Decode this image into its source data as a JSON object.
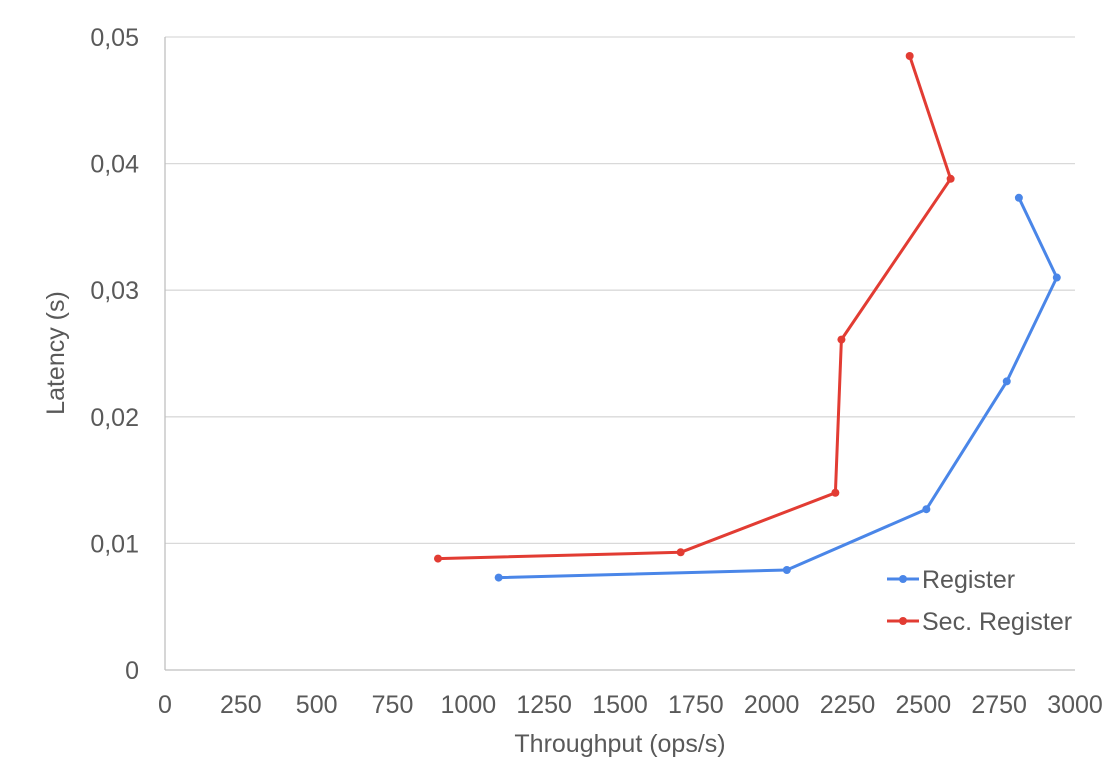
{
  "chart_data": {
    "type": "line",
    "xlabel": "Throughput (ops/s)",
    "ylabel": "Latency (s)",
    "xlim": [
      0,
      3000
    ],
    "ylim": [
      0,
      0.05
    ],
    "x_ticks": [
      0,
      250,
      500,
      750,
      1000,
      1250,
      1500,
      1750,
      2000,
      2250,
      2500,
      2750,
      3000
    ],
    "x_tick_labels": [
      "0",
      "250",
      "500",
      "750",
      "1000",
      "1250",
      "1500",
      "1750",
      "2000",
      "2250",
      "2500",
      "2750",
      "3000"
    ],
    "y_ticks": [
      0,
      0.01,
      0.02,
      0.03,
      0.04,
      0.05
    ],
    "y_tick_labels": [
      "0",
      "0,01",
      "0,02",
      "0,03",
      "0,04",
      "0,05"
    ],
    "grid": "horizontal",
    "legend_position": "bottom-right",
    "series": [
      {
        "name": "Register",
        "color": "#4a86e8",
        "points": [
          {
            "x": 1100,
            "y": 0.0073
          },
          {
            "x": 2050,
            "y": 0.0079
          },
          {
            "x": 2510,
            "y": 0.0127
          },
          {
            "x": 2775,
            "y": 0.0228
          },
          {
            "x": 2940,
            "y": 0.031
          },
          {
            "x": 2815,
            "y": 0.0373
          }
        ]
      },
      {
        "name": "Sec. Register",
        "color": "#e23c33",
        "points": [
          {
            "x": 900,
            "y": 0.0088
          },
          {
            "x": 1700,
            "y": 0.0093
          },
          {
            "x": 2210,
            "y": 0.014
          },
          {
            "x": 2230,
            "y": 0.0261
          },
          {
            "x": 2590,
            "y": 0.0388
          },
          {
            "x": 2455,
            "y": 0.0485
          }
        ]
      }
    ]
  }
}
